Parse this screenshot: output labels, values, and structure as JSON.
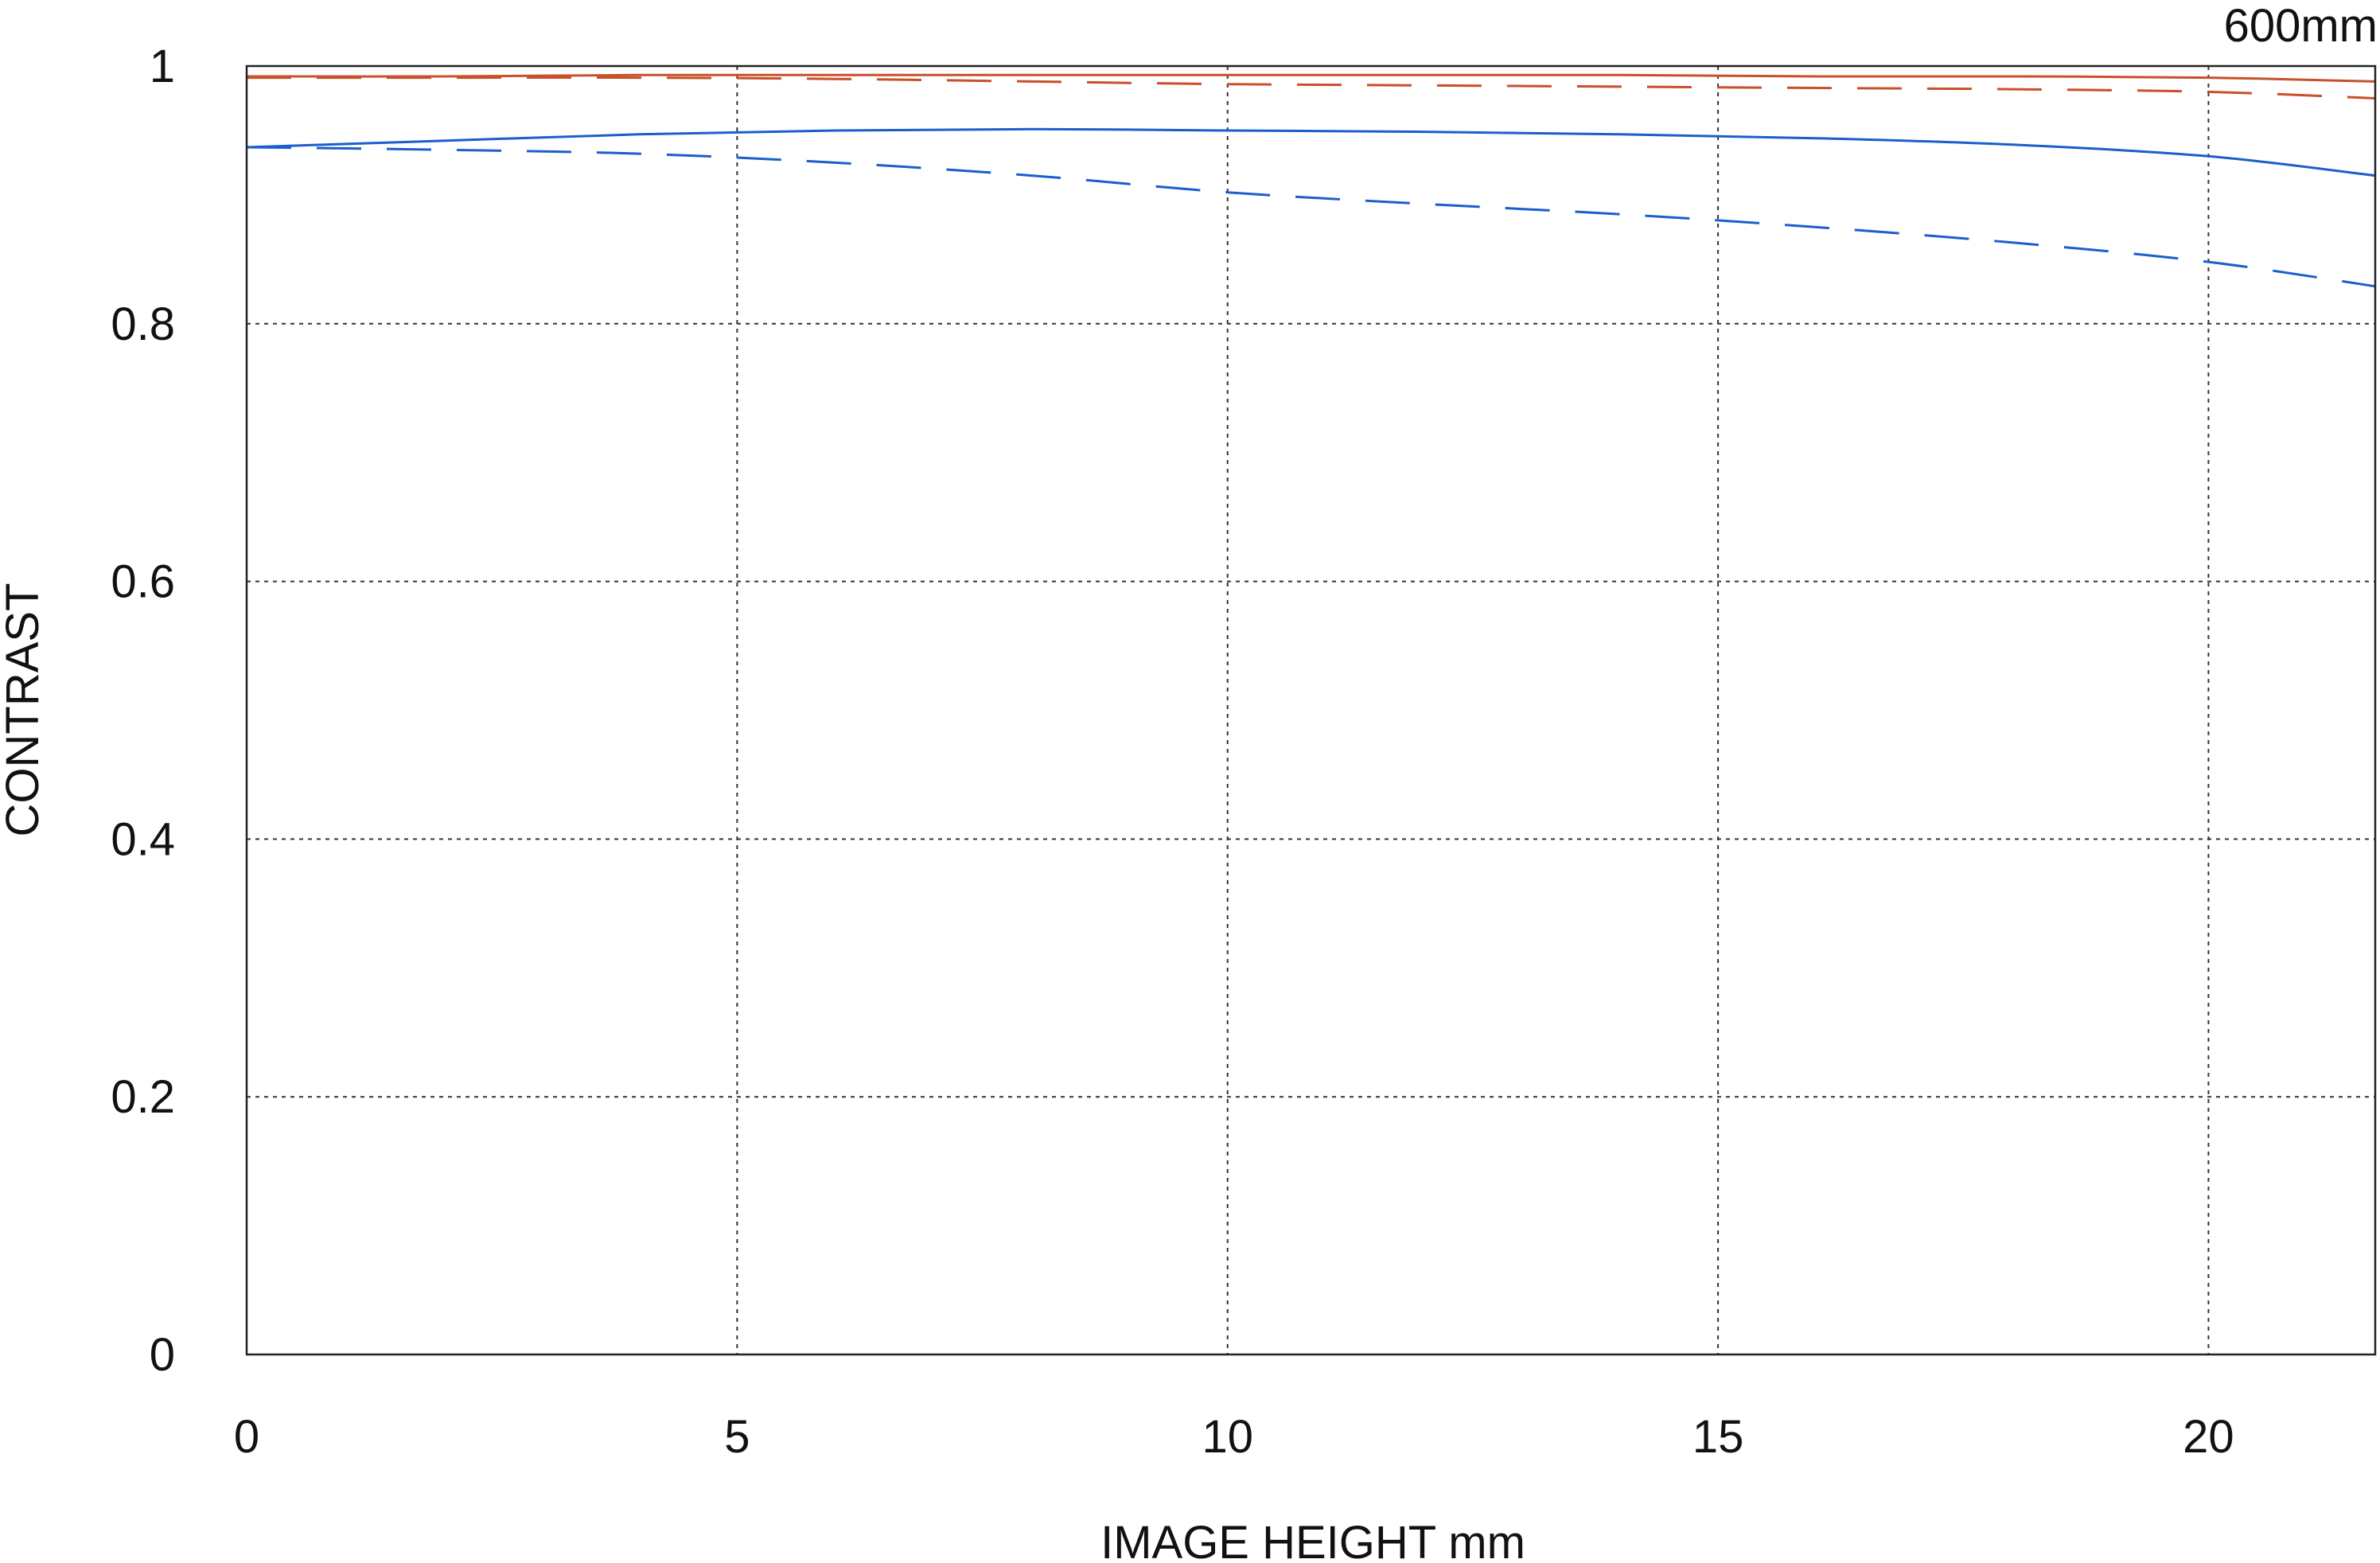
{
  "chart_data": {
    "type": "line",
    "title": "600mm",
    "xlabel": "IMAGE HEIGHT  mm",
    "ylabel": "CONTRAST",
    "xlim": [
      0,
      21.7
    ],
    "ylim": [
      0,
      1
    ],
    "x_ticks": [
      0,
      5,
      10,
      15,
      20
    ],
    "y_ticks": [
      0,
      0.2,
      0.4,
      0.6,
      0.8,
      1
    ],
    "x_tick_labels": [
      "0",
      "5",
      "10",
      "15",
      "20"
    ],
    "y_tick_labels": [
      "0",
      "0.2",
      "0.4",
      "0.6",
      "0.8",
      "1"
    ],
    "grid": true,
    "legend": "none",
    "series": [
      {
        "color": "#c8502a",
        "style": "solid",
        "x": [
          0,
          2,
          4,
          6,
          8,
          10,
          12,
          14,
          16,
          18,
          20,
          21.7
        ],
        "y": [
          0.992,
          0.992,
          0.993,
          0.993,
          0.993,
          0.993,
          0.993,
          0.993,
          0.992,
          0.992,
          0.991,
          0.988
        ]
      },
      {
        "color": "#c8502a",
        "style": "dashed",
        "x": [
          0,
          2,
          4,
          6,
          8,
          10,
          12,
          14,
          16,
          18,
          20,
          21.7
        ],
        "y": [
          0.991,
          0.991,
          0.991,
          0.99,
          0.988,
          0.986,
          0.985,
          0.984,
          0.983,
          0.982,
          0.98,
          0.975
        ]
      },
      {
        "color": "#1a5fcc",
        "style": "solid",
        "x": [
          0,
          2,
          4,
          6,
          8,
          10,
          12,
          14,
          16,
          18,
          20,
          21.7
        ],
        "y": [
          0.937,
          0.942,
          0.947,
          0.95,
          0.951,
          0.95,
          0.949,
          0.947,
          0.944,
          0.939,
          0.93,
          0.915
        ]
      },
      {
        "color": "#1a5fcc",
        "style": "dashed",
        "x": [
          0,
          2,
          4,
          6,
          8,
          10,
          12,
          14,
          16,
          18,
          20,
          21.7
        ],
        "y": [
          0.937,
          0.935,
          0.932,
          0.925,
          0.915,
          0.902,
          0.893,
          0.885,
          0.875,
          0.863,
          0.848,
          0.829
        ]
      }
    ]
  }
}
